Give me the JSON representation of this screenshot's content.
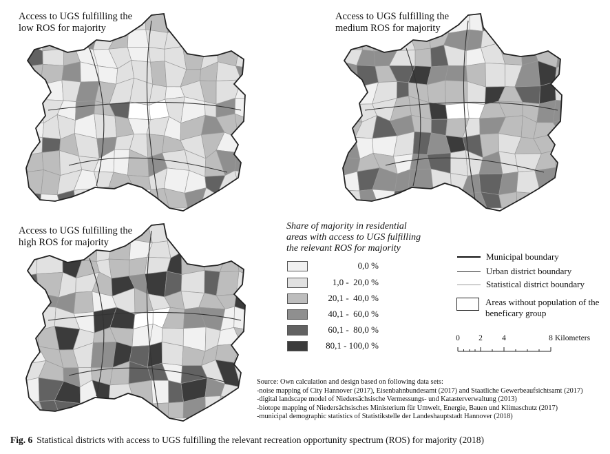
{
  "colors": {
    "c0": "#f1f1f1",
    "c1": "#e1e1e1",
    "c2": "#bdbdbd",
    "c3": "#8f8f8f",
    "c4": "#626262",
    "c5": "#3b3b3b",
    "boundary": "#222222",
    "district_line": "#9a9a9a"
  },
  "maps": [
    {
      "id": "low",
      "title_line1": "Access to UGS fulfilling the",
      "title_line2": "low ROS for majority",
      "shade_weights": [
        0.2,
        0.38,
        0.3,
        0.08,
        0.03,
        0.01
      ]
    },
    {
      "id": "medium",
      "title_line1": "Access to UGS fulfilling the",
      "title_line2": "medium ROS for majority",
      "shade_weights": [
        0.06,
        0.24,
        0.3,
        0.2,
        0.12,
        0.08
      ]
    },
    {
      "id": "high",
      "title_line1": "Access to UGS fulfilling the",
      "title_line2": "high ROS for majority",
      "shade_weights": [
        0.1,
        0.3,
        0.22,
        0.14,
        0.12,
        0.12
      ]
    }
  ],
  "legend": {
    "title_line1": "Share of majority in residential",
    "title_line2": "areas with access to UGS fulfilling",
    "title_line3": "the relevant ROS for majority",
    "classes": [
      {
        "label": "0,0 %",
        "color": "#f1f1f1"
      },
      {
        "label": "1,0 -  20,0 %",
        "color": "#e1e1e1"
      },
      {
        "label": "20,1 -  40,0 %",
        "color": "#bdbdbd"
      },
      {
        "label": "40,1 -  60,0 %",
        "color": "#8f8f8f"
      },
      {
        "label": "60,1 -  80,0 %",
        "color": "#626262"
      },
      {
        "label": "80,1 - 100,0 %",
        "color": "#3b3b3b"
      }
    ],
    "boundaries": {
      "municipal": "Municipal boundary",
      "urban_district": "Urban district boundary",
      "statistical_district": "Statistical district boundary",
      "no_population_line1": "Areas without population of the",
      "no_population_line2": "beneficary group"
    },
    "scale": {
      "ticks": [
        "0",
        "2",
        "4",
        "8"
      ],
      "unit": "Kilometers"
    }
  },
  "source": {
    "line1": "Source: Own calculation and design based on following data sets:",
    "line2": "-noise mapping of City Hannover (2017), Eisenbahnbundesamt (2017) and Staatliche Gewerbeaufsichtsamt (2017)",
    "line3": "-digital landscape model of Niedersächsische Vermessungs- und Katasterverwaltung (2013)",
    "line4": "-biotope mapping of Niedersächsisches Ministerium für Umwelt, Energie, Bauen und Klimaschutz (2017)",
    "line5": "-municipal demographic statistics of Statistikstelle der Landeshauptstadt Hannover (2018)"
  },
  "caption": {
    "label": "Fig. 6",
    "text": "Statistical districts with access to UGS fulfilling the relevant recreation opportunity spectrum (ROS) for majority (2018)"
  }
}
